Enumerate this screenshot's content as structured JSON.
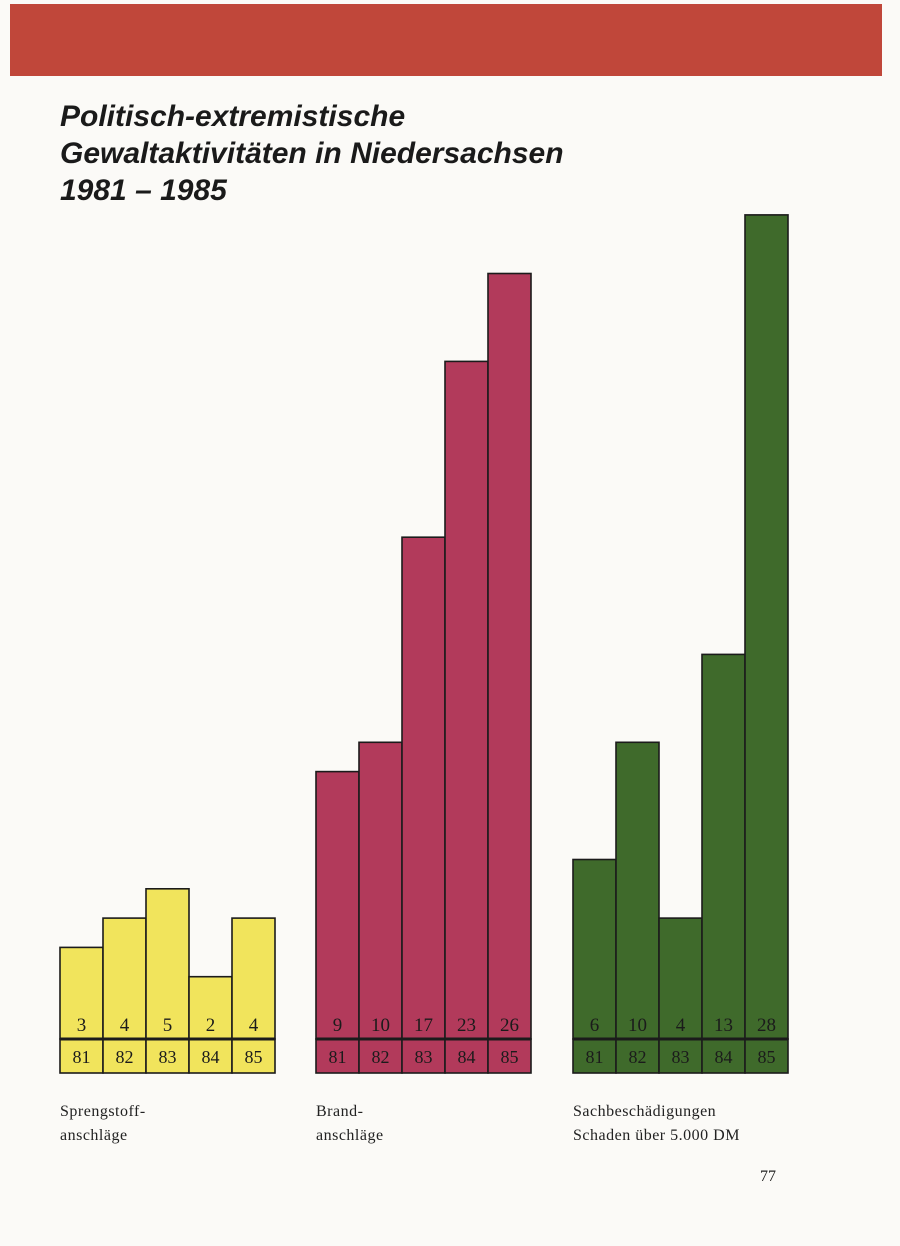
{
  "header": {
    "band_color": "#c0473a"
  },
  "title_lines": [
    "Politisch-extremistische",
    "Gewaltaktivitäten in Niedersachsen",
    "1981 – 1985"
  ],
  "chart_data": {
    "type": "bar",
    "title": "Politisch-extremistische Gewaltaktivitäten in Niedersachsen 1981 – 1985",
    "categories": [
      "81",
      "82",
      "83",
      "84",
      "85"
    ],
    "groups": [
      {
        "key": "spreng",
        "label_lines": [
          "Sprengstoff-",
          "anschläge"
        ],
        "color": "#f1e45c",
        "values": [
          3,
          4,
          5,
          2,
          4
        ]
      },
      {
        "key": "brand",
        "label_lines": [
          "Brand-",
          "anschläge"
        ],
        "color": "#b23a5b",
        "values": [
          9,
          10,
          17,
          23,
          26
        ]
      },
      {
        "key": "sach",
        "label_lines": [
          "Sachbeschädigungen",
          "Schaden über 5.000 DM"
        ],
        "color": "#3f6a2b",
        "values": [
          6,
          10,
          4,
          13,
          28
        ]
      }
    ],
    "legend": "none",
    "grid": false
  },
  "footer": {
    "page_number": "77"
  }
}
